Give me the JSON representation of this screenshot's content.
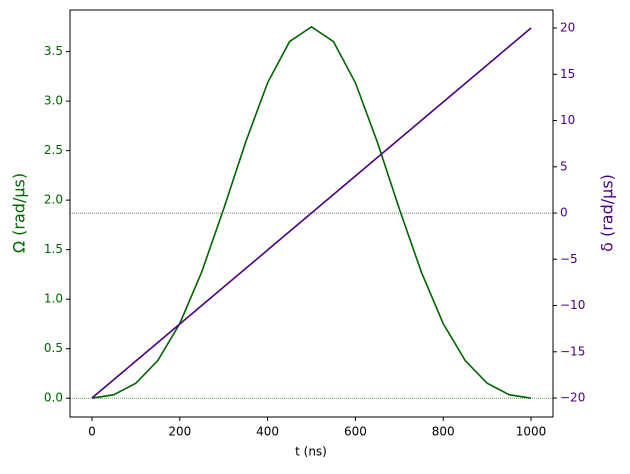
{
  "chart_data": {
    "type": "line",
    "xlabel": "t (ns)",
    "ylabel": "Ω (rad/µs)",
    "y2label": "δ (rad/µs)",
    "x": [
      0,
      50,
      100,
      150,
      200,
      250,
      300,
      350,
      400,
      450,
      500,
      550,
      600,
      650,
      700,
      750,
      800,
      850,
      900,
      950,
      1000
    ],
    "series": [
      {
        "color": "#006400",
        "values": [
          0,
          0.035,
          0.151,
          0.38,
          0.753,
          1.275,
          1.912,
          2.585,
          3.185,
          3.601,
          3.75,
          3.601,
          3.185,
          2.585,
          1.912,
          1.275,
          0.753,
          0.38,
          0.151,
          0.035,
          0
        ]
      },
      {
        "color": "#4b0082",
        "axis": "y2",
        "values": [
          -20,
          -18,
          -16,
          -14,
          -12,
          -10,
          -8,
          -6,
          -4,
          -2,
          0,
          2,
          4,
          6,
          8,
          10,
          12,
          14,
          16,
          18,
          20
        ]
      }
    ],
    "xlim": [
      -50,
      1050
    ],
    "xticks": [
      0,
      200,
      400,
      600,
      800,
      1000
    ],
    "ylim": [
      -0.19,
      3.92
    ],
    "yticks": [
      {
        "value": 0,
        "label": "0.0"
      },
      {
        "value": 0.5,
        "label": "0.5"
      },
      {
        "value": 1,
        "label": "1.0"
      },
      {
        "value": 1.5,
        "label": "1.5"
      },
      {
        "value": 2,
        "label": "2.0"
      },
      {
        "value": 2.5,
        "label": "2.5"
      },
      {
        "value": 3,
        "label": "3.0"
      },
      {
        "value": 3.5,
        "label": "3.5"
      }
    ],
    "y2lim": [
      -22.05,
      21.95
    ],
    "y2ticks": [
      {
        "value": -20,
        "label": "−20"
      },
      {
        "value": -15,
        "label": "−15"
      },
      {
        "value": -10,
        "label": "−10"
      },
      {
        "value": -5,
        "label": "−5"
      },
      0,
      5,
      10,
      15,
      20
    ]
  }
}
